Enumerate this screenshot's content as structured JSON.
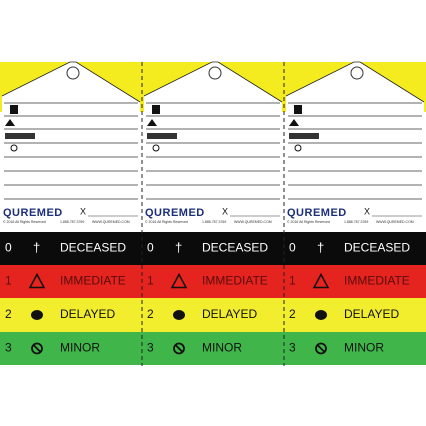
{
  "tags": [
    {
      "brand": "QUREMED",
      "signature": "X",
      "copyright": "© 2016 All Rights Reserved",
      "phone": "1.888.787.3769",
      "website": "WWW.QUREMED.COM",
      "deceased_symbol": "†",
      "bands": [
        {
          "number": "0",
          "label": "DECEASED"
        },
        {
          "number": "1",
          "label": "IMMEDIATE"
        },
        {
          "number": "2",
          "label": "DELAYED"
        },
        {
          "number": "3",
          "label": "MINOR"
        }
      ]
    },
    {
      "brand": "QUREMED",
      "signature": "X",
      "copyright": "© 2016 All Rights Reserved",
      "phone": "1.888.787.3769",
      "website": "WWW.QUREMED.COM",
      "deceased_symbol": "†",
      "bands": [
        {
          "number": "0",
          "label": "DECEASED"
        },
        {
          "number": "1",
          "label": "IMMEDIATE"
        },
        {
          "number": "2",
          "label": "DELAYED"
        },
        {
          "number": "3",
          "label": "MINOR"
        }
      ]
    },
    {
      "brand": "QUREMED",
      "signature": "X",
      "copyright": "© 2016 All Rights Reserved",
      "phone": "1.888.787.3769",
      "website": "WWW.QUREMED.COM",
      "deceased_symbol": "†",
      "bands": [
        {
          "number": "0",
          "label": "DECEASED"
        },
        {
          "number": "1",
          "label": "IMMEDIATE"
        },
        {
          "number": "2",
          "label": "DELAYED"
        },
        {
          "number": "3",
          "label": "MINOR"
        }
      ]
    }
  ]
}
